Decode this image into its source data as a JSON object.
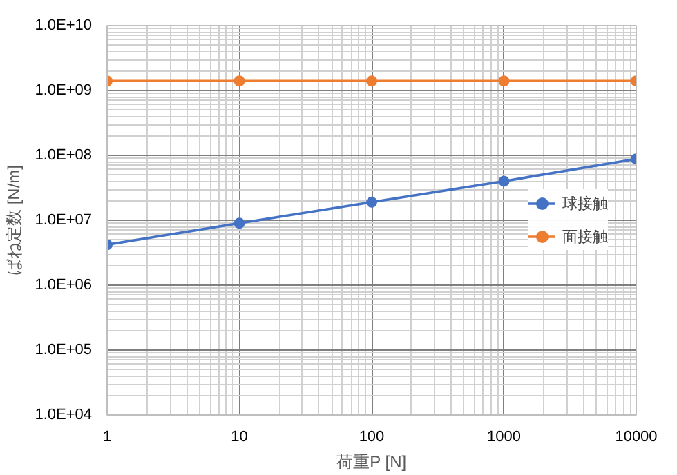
{
  "chart_data": {
    "type": "line",
    "xlabel": "荷重P [N]",
    "ylabel": "ばね定数 [N/m]",
    "log": "xy",
    "grid": true,
    "legend": "right",
    "marker": "circle",
    "x": [
      1,
      10,
      100,
      1000,
      10000
    ],
    "series": [
      {
        "name": "球接触",
        "color": "#4472c4",
        "values": [
          4200000,
          9000000,
          19000000,
          40000000,
          88000000
        ]
      },
      {
        "name": "面接触",
        "color": "#ed7d31",
        "values": [
          1400000000,
          1400000000,
          1400000000,
          1400000000,
          1400000000
        ]
      }
    ],
    "xlim": [
      1,
      10000
    ],
    "ylim": [
      10000,
      10000000000
    ],
    "xticks": [
      1,
      10,
      100,
      1000,
      10000
    ],
    "yticks": [
      {
        "value": 10000,
        "label": "1.0E+04"
      },
      {
        "value": 100000,
        "label": "1.0E+05"
      },
      {
        "value": 1000000,
        "label": "1.0E+06"
      },
      {
        "value": 10000000,
        "label": "1.0E+07"
      },
      {
        "value": 100000000,
        "label": "1.0E+08"
      },
      {
        "value": 1000000000,
        "label": "1.0E+09"
      },
      {
        "value": 10000000000,
        "label": "1.0E+10"
      }
    ]
  }
}
